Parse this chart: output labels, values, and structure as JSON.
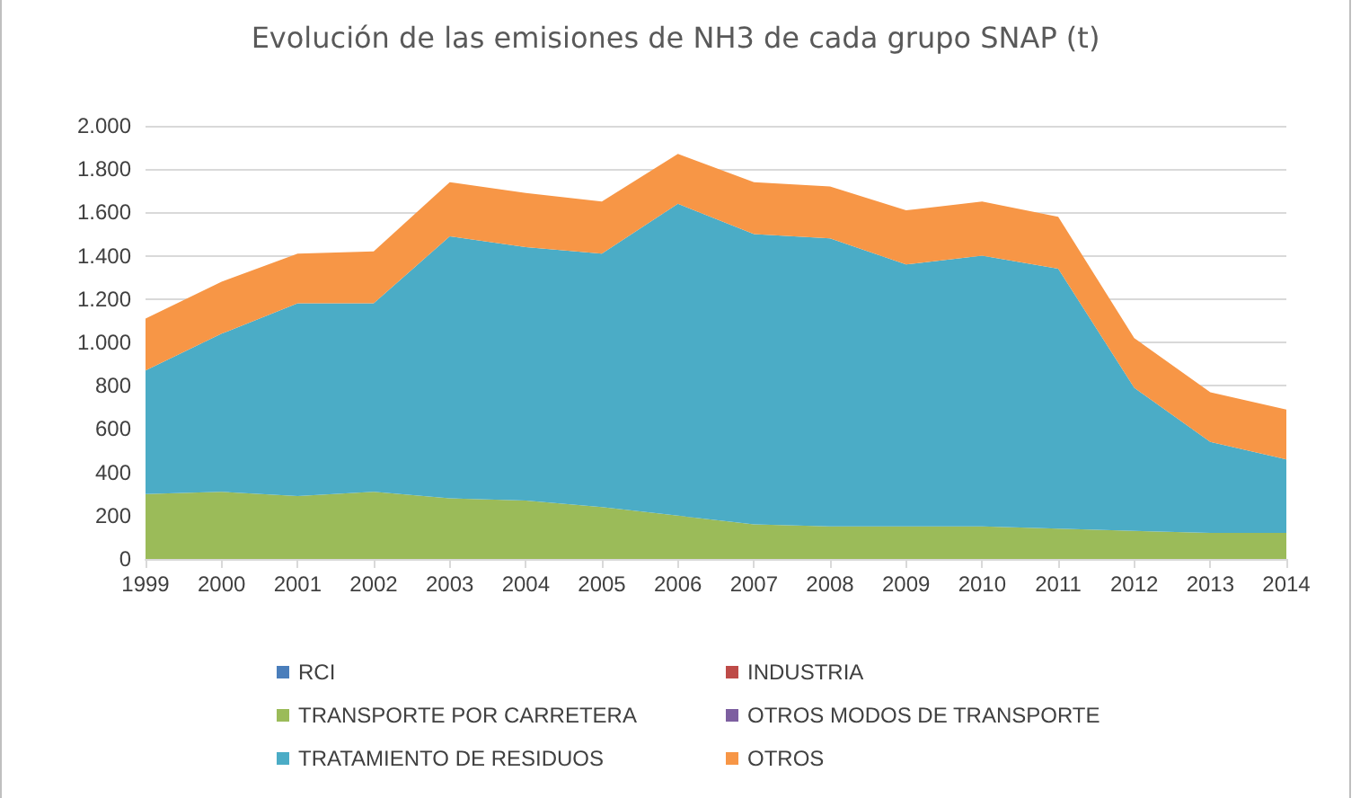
{
  "chart_data": {
    "type": "area",
    "stacked": true,
    "title": "Evolución de las emisiones de NH3 de cada grupo SNAP (t)",
    "categories": [
      "1999",
      "2000",
      "2001",
      "2002",
      "2003",
      "2004",
      "2005",
      "2006",
      "2007",
      "2008",
      "2009",
      "2010",
      "2011",
      "2012",
      "2013",
      "2014"
    ],
    "series": [
      {
        "name": "RCI",
        "color": "#4a7ebb",
        "values": [
          null,
          null,
          null,
          null,
          null,
          null,
          null,
          null,
          null,
          null,
          null,
          null,
          null,
          null,
          null,
          null
        ]
      },
      {
        "name": "INDUSTRIA",
        "color": "#be4b48",
        "values": [
          null,
          null,
          null,
          null,
          null,
          null,
          null,
          null,
          null,
          null,
          null,
          null,
          null,
          null,
          null,
          null
        ]
      },
      {
        "name": "TRANSPORTE POR CARRETERA",
        "color": "#9bbb59",
        "values": [
          300,
          310,
          290,
          310,
          280,
          270,
          240,
          200,
          160,
          150,
          150,
          150,
          140,
          130,
          120,
          120
        ]
      },
      {
        "name": "OTROS MODOS DE TRANSPORTE",
        "color": "#7d5fa0",
        "values": [
          null,
          null,
          null,
          null,
          null,
          null,
          null,
          null,
          null,
          null,
          null,
          null,
          null,
          null,
          null,
          null
        ]
      },
      {
        "name": "TRATAMIENTO DE RESIDUOS",
        "color": "#4bacc6",
        "values": [
          570,
          730,
          890,
          870,
          1210,
          1170,
          1170,
          1440,
          1340,
          1330,
          1210,
          1250,
          1200,
          660,
          420,
          340
        ]
      },
      {
        "name": "OTROS",
        "color": "#f79646",
        "values": [
          240,
          240,
          230,
          240,
          250,
          250,
          240,
          230,
          240,
          240,
          250,
          250,
          240,
          230,
          230,
          230
        ]
      }
    ],
    "ylim": [
      0,
      2000
    ],
    "yticks": [
      0,
      200,
      400,
      600,
      800,
      {
        "value": 1000,
        "label": "1.000"
      },
      {
        "value": 1200,
        "label": "1.200"
      },
      {
        "value": 1400,
        "label": "1.400"
      },
      {
        "value": 1600,
        "label": "1.600"
      },
      {
        "value": 1800,
        "label": "1.800"
      },
      {
        "value": 2000,
        "label": "2.000"
      }
    ],
    "grid": "y",
    "legend": "bottom"
  }
}
